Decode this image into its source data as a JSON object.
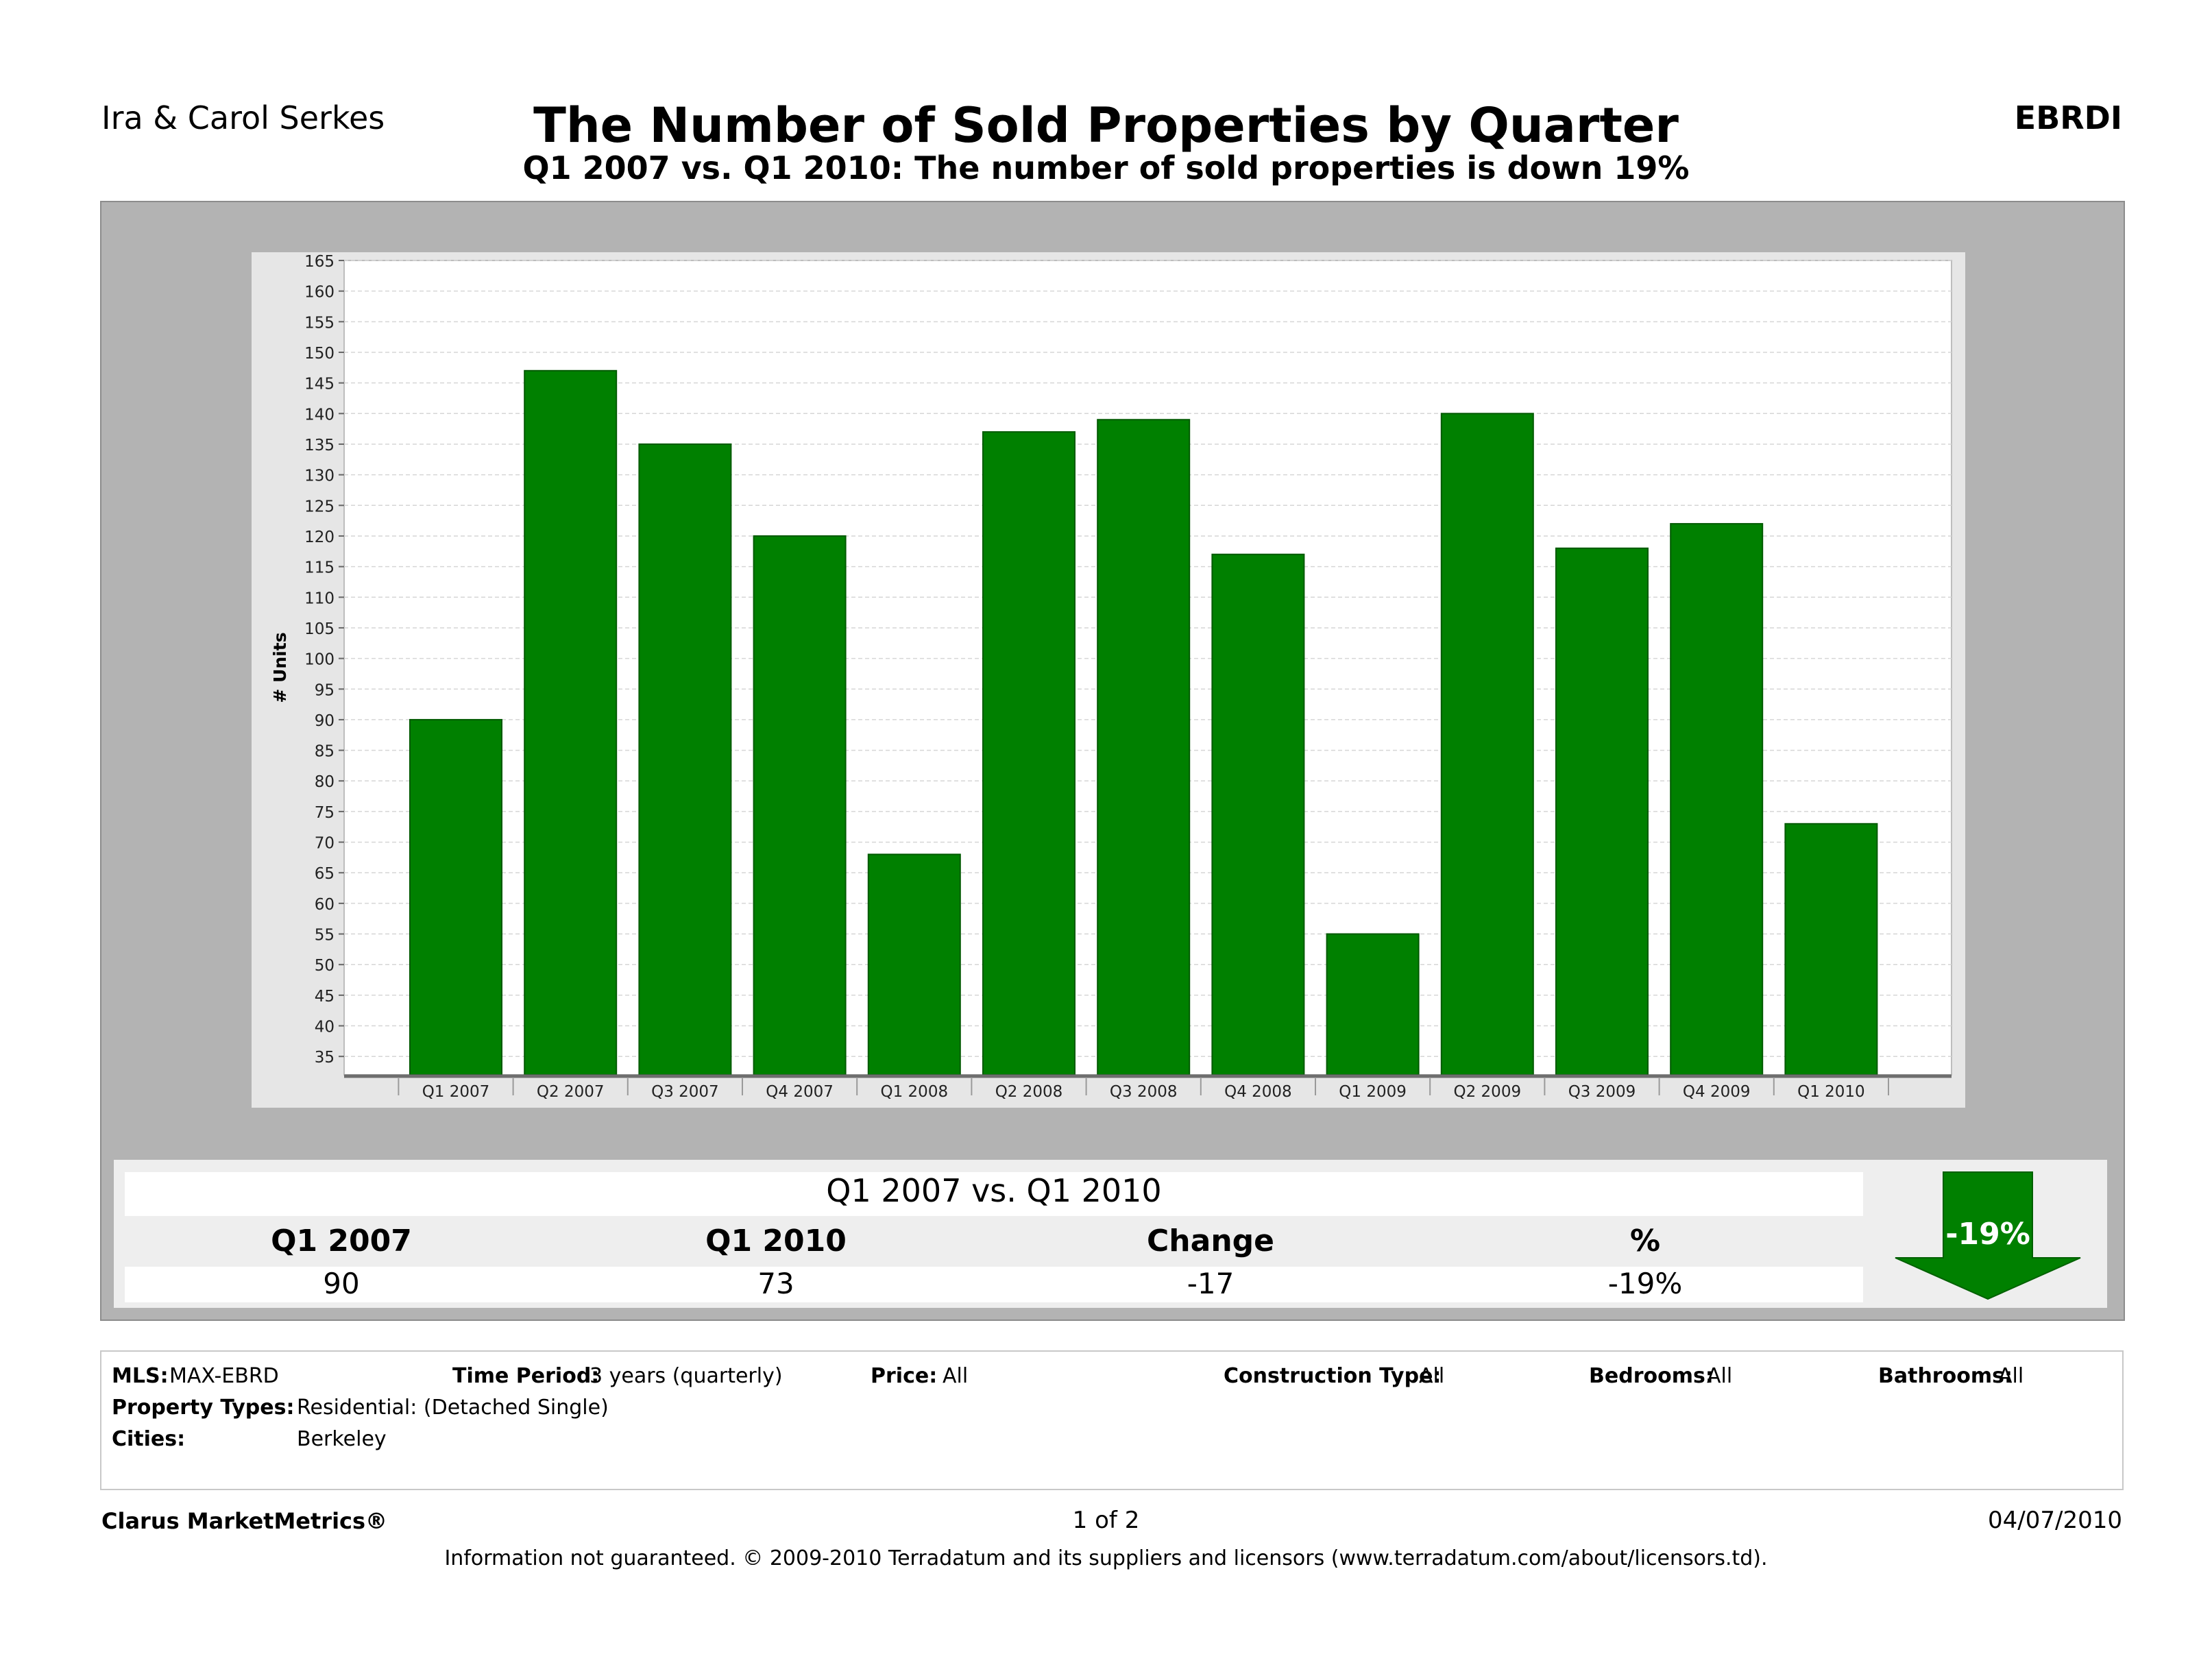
{
  "header": {
    "agent": "Ira & Carol Serkes",
    "code": "EBRDI",
    "title": "The Number of Sold Properties by Quarter",
    "subtitle": "Q1 2007 vs. Q1 2010:  The number of sold properties is down 19%"
  },
  "chart_data": {
    "type": "bar",
    "title": "",
    "xlabel": "",
    "ylabel": "# Units",
    "ylim": [
      32,
      165
    ],
    "ytick_step": 5,
    "ytick_min": 35,
    "grid": true,
    "bar_color": "#008000",
    "categories": [
      "Q1 2007",
      "Q2 2007",
      "Q3 2007",
      "Q4 2007",
      "Q1 2008",
      "Q2 2008",
      "Q3 2008",
      "Q4 2008",
      "Q1 2009",
      "Q2 2009",
      "Q3 2009",
      "Q4 2009",
      "Q1 2010"
    ],
    "values": [
      90,
      147,
      135,
      120,
      68,
      137,
      139,
      117,
      55,
      140,
      118,
      122,
      73
    ]
  },
  "summary": {
    "title": "Q1 2007 vs. Q1 2010",
    "columns": [
      {
        "header": "Q1 2007",
        "value": "90"
      },
      {
        "header": "Q1 2010",
        "value": "73"
      },
      {
        "header": "Change",
        "value": "-17"
      },
      {
        "header": "%",
        "value": "-19%"
      }
    ],
    "arrow_label": "-19%",
    "arrow_color": "#008000"
  },
  "criteria": {
    "mls_label": "MLS:",
    "mls_value": "MAX-EBRD",
    "period_label": "Time Period:",
    "period_value": "3 years (quarterly)",
    "price_label": "Price:",
    "price_value": "All",
    "construction_label": "Construction Type:",
    "construction_value": "All",
    "bedrooms_label": "Bedrooms:",
    "bedrooms_value": "All",
    "bathrooms_label": "Bathrooms:",
    "bathrooms_value": "All",
    "types_label": "Property Types:",
    "types_value": "Residential: (Detached Single)",
    "cities_label": "Cities:",
    "cities_value": "Berkeley"
  },
  "footer": {
    "brand": "Clarus MarketMetrics®",
    "page": "1 of 2",
    "date": "04/07/2010",
    "note": "Information not guaranteed.  © 2009-2010 Terradatum and its suppliers and licensors (www.terradatum.com/about/licensors.td)."
  }
}
